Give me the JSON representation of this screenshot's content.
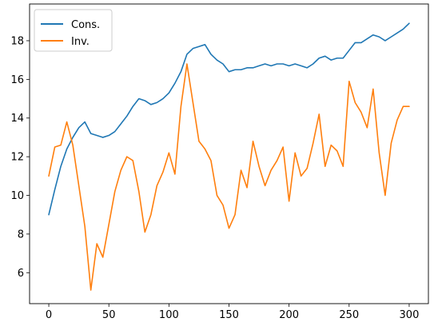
{
  "chart_data": {
    "type": "line",
    "title": "",
    "xlabel": "",
    "ylabel": "",
    "xlim": [
      -16,
      316
    ],
    "ylim": [
      4.4,
      19.9
    ],
    "grid": false,
    "legend": "top-left",
    "x_ticks": [
      0,
      50,
      100,
      150,
      200,
      250,
      300
    ],
    "y_ticks": [
      6,
      8,
      10,
      12,
      14,
      16,
      18
    ],
    "x": [
      0,
      5,
      10,
      15,
      20,
      25,
      30,
      35,
      40,
      45,
      50,
      55,
      60,
      65,
      70,
      75,
      80,
      85,
      90,
      95,
      100,
      105,
      110,
      115,
      120,
      125,
      130,
      135,
      140,
      145,
      150,
      155,
      160,
      165,
      170,
      175,
      180,
      185,
      190,
      195,
      200,
      205,
      210,
      215,
      220,
      225,
      230,
      235,
      240,
      245,
      250,
      255,
      260,
      265,
      270,
      275,
      280,
      285,
      290,
      295,
      300
    ],
    "series": [
      {
        "name": "Cons.",
        "color": "#1f77b4",
        "values": [
          9.0,
          10.3,
          11.5,
          12.4,
          13.0,
          13.5,
          13.8,
          13.2,
          13.1,
          13.0,
          13.1,
          13.3,
          13.7,
          14.1,
          14.6,
          15.0,
          14.9,
          14.7,
          14.8,
          15.0,
          15.3,
          15.8,
          16.4,
          17.3,
          17.6,
          17.7,
          17.8,
          17.3,
          17.0,
          16.8,
          16.4,
          16.5,
          16.5,
          16.6,
          16.6,
          16.7,
          16.8,
          16.7,
          16.8,
          16.8,
          16.7,
          16.8,
          16.7,
          16.6,
          16.8,
          17.1,
          17.2,
          17.0,
          17.1,
          17.1,
          17.5,
          17.9,
          17.9,
          18.1,
          18.3,
          18.2,
          18.0,
          18.2,
          18.4,
          18.6,
          18.9
        ]
      },
      {
        "name": "Inv.",
        "color": "#ff7f0e",
        "values": [
          11.0,
          12.5,
          12.6,
          13.8,
          12.6,
          10.5,
          8.4,
          5.1,
          7.5,
          6.8,
          8.5,
          10.2,
          11.3,
          12.0,
          11.8,
          10.2,
          8.1,
          9.0,
          10.5,
          11.2,
          12.2,
          11.1,
          14.6,
          16.8,
          14.8,
          12.8,
          12.4,
          11.8,
          10.0,
          9.5,
          8.3,
          9.0,
          11.3,
          10.4,
          12.8,
          11.5,
          10.5,
          11.3,
          11.8,
          12.5,
          9.7,
          12.2,
          11.0,
          11.4,
          12.7,
          14.2,
          11.5,
          12.6,
          12.3,
          11.5,
          15.9,
          14.8,
          14.3,
          13.5,
          15.5,
          12.2,
          10.0,
          12.7,
          13.9,
          14.6,
          14.6
        ]
      }
    ]
  }
}
